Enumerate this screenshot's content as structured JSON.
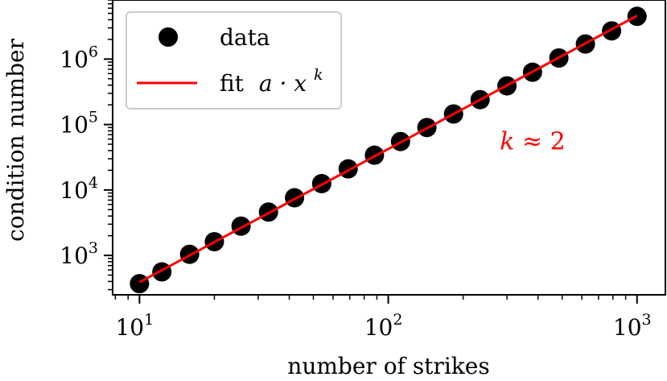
{
  "chart_data": {
    "type": "scatter",
    "title": "",
    "xlabel": "number of strikes",
    "ylabel": "condition number",
    "xscale": "log",
    "yscale": "log",
    "xlim": [
      7.8,
      1300
    ],
    "ylim": [
      250,
      8000000
    ],
    "xticks": [
      {
        "base": "10",
        "exp": "1",
        "value": 10
      },
      {
        "base": "10",
        "exp": "2",
        "value": 100
      },
      {
        "base": "10",
        "exp": "3",
        "value": 1000
      }
    ],
    "yticks": [
      {
        "base": "10",
        "exp": "3",
        "value": 1000
      },
      {
        "base": "10",
        "exp": "4",
        "value": 10000
      },
      {
        "base": "10",
        "exp": "5",
        "value": 100000
      },
      {
        "base": "10",
        "exp": "6",
        "value": 1000000
      }
    ],
    "grid": false,
    "legend_position": "top-left",
    "colors": {
      "data": "#000000",
      "fit": "#ff0000",
      "annotation": "#ff0000"
    },
    "series": [
      {
        "name": "data",
        "kind": "points",
        "x": [
          10,
          12.3,
          15.9,
          20,
          25.6,
          33,
          42,
          54,
          69,
          88,
          112,
          143,
          183,
          234,
          300,
          380,
          485,
          620,
          790,
          1000
        ],
        "y": [
          370,
          560,
          1040,
          1620,
          2800,
          4600,
          7600,
          12500,
          21000,
          34000,
          55000,
          90000,
          145000,
          240000,
          390000,
          630000,
          1040000,
          1700000,
          2700000,
          4500000
        ]
      },
      {
        "name": "fit",
        "name_math": "a · x",
        "name_exp": "k",
        "kind": "line",
        "x": [
          10,
          1000
        ],
        "y": [
          390,
          4600000
        ]
      }
    ],
    "annotations": [
      {
        "text": "k ≈ 2",
        "x": 285,
        "y": 55000
      }
    ]
  }
}
